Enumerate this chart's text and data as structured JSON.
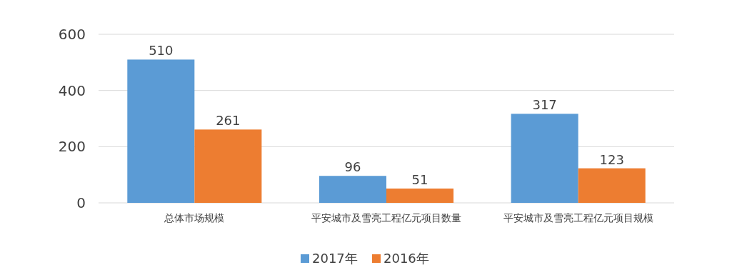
{
  "chart_data": {
    "type": "bar",
    "categories": [
      "总体市场规模",
      "平安城市及雪亮工程亿元项目数量",
      "平安城市及雪亮工程亿元项目规模"
    ],
    "series": [
      {
        "name": "2017年",
        "color": "#5b9bd5",
        "values": [
          510,
          96,
          317
        ]
      },
      {
        "name": "2016年",
        "color": "#ed7d31",
        "values": [
          261,
          51,
          123
        ]
      }
    ],
    "ylim": [
      0,
      600
    ],
    "yticks": [
      0,
      200,
      400,
      600
    ],
    "grid": "y",
    "legend": "bottom",
    "data_labels": true
  }
}
